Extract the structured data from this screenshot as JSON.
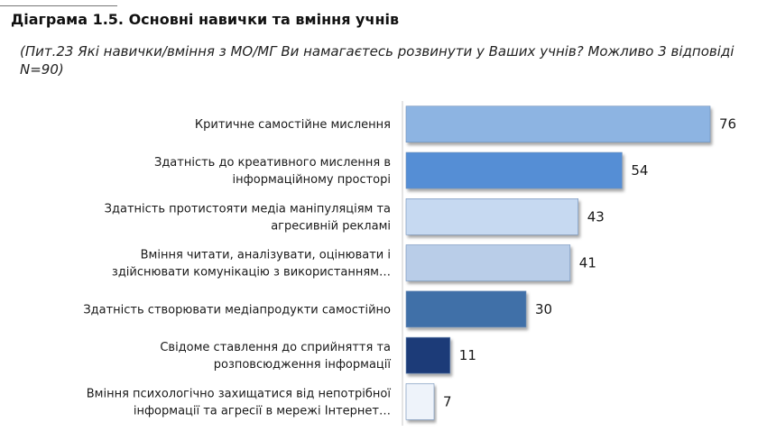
{
  "header": {
    "title": "Діаграма 1.5. Основні навички та вміння учнів",
    "subtitle": "(Пит.23 Які навички/вміння з МО/МГ Ви намагаєтесь розвинути у Ваших учнів? Можливо 3 відповіді N=90)"
  },
  "chart_data": {
    "type": "bar",
    "orientation": "horizontal",
    "title": "Діаграма 1.5. Основні навички та вміння учнів",
    "subtitle": "(Пит.23 Які навички/вміння з МО/МГ Ви намагаєтесь розвинути у Ваших учнів? Можливо 3 відповіді N=90)",
    "categories": [
      [
        "Критичне самостійне мислення"
      ],
      [
        "Здатність до креативного мислення в",
        "інформаційному просторі"
      ],
      [
        "Здатність протистояти медіа маніпуляціям та",
        "агресивній рекламі"
      ],
      [
        "Вміння читати, аналізувати, оцінювати і",
        "здійснювати комунікацію з використанням…"
      ],
      [
        "Здатність створювати медіапродукти самостійно"
      ],
      [
        "Свідоме ставлення до сприйняття та",
        "розповсюдження інформації"
      ],
      [
        "Вміння психологічно захищатися від непотрібної",
        "інформації та агресії в  мережі Інтернет…"
      ]
    ],
    "values": [
      76,
      54,
      43,
      41,
      30,
      11,
      7
    ],
    "colors": [
      "#8db4e2",
      "#558ed5",
      "#c6d9f1",
      "#b9cde8",
      "#3f6fa8",
      "#1f3a78",
      "#eef3fa"
    ],
    "xlim": [
      0,
      76
    ],
    "grid": false,
    "legend": "none"
  }
}
